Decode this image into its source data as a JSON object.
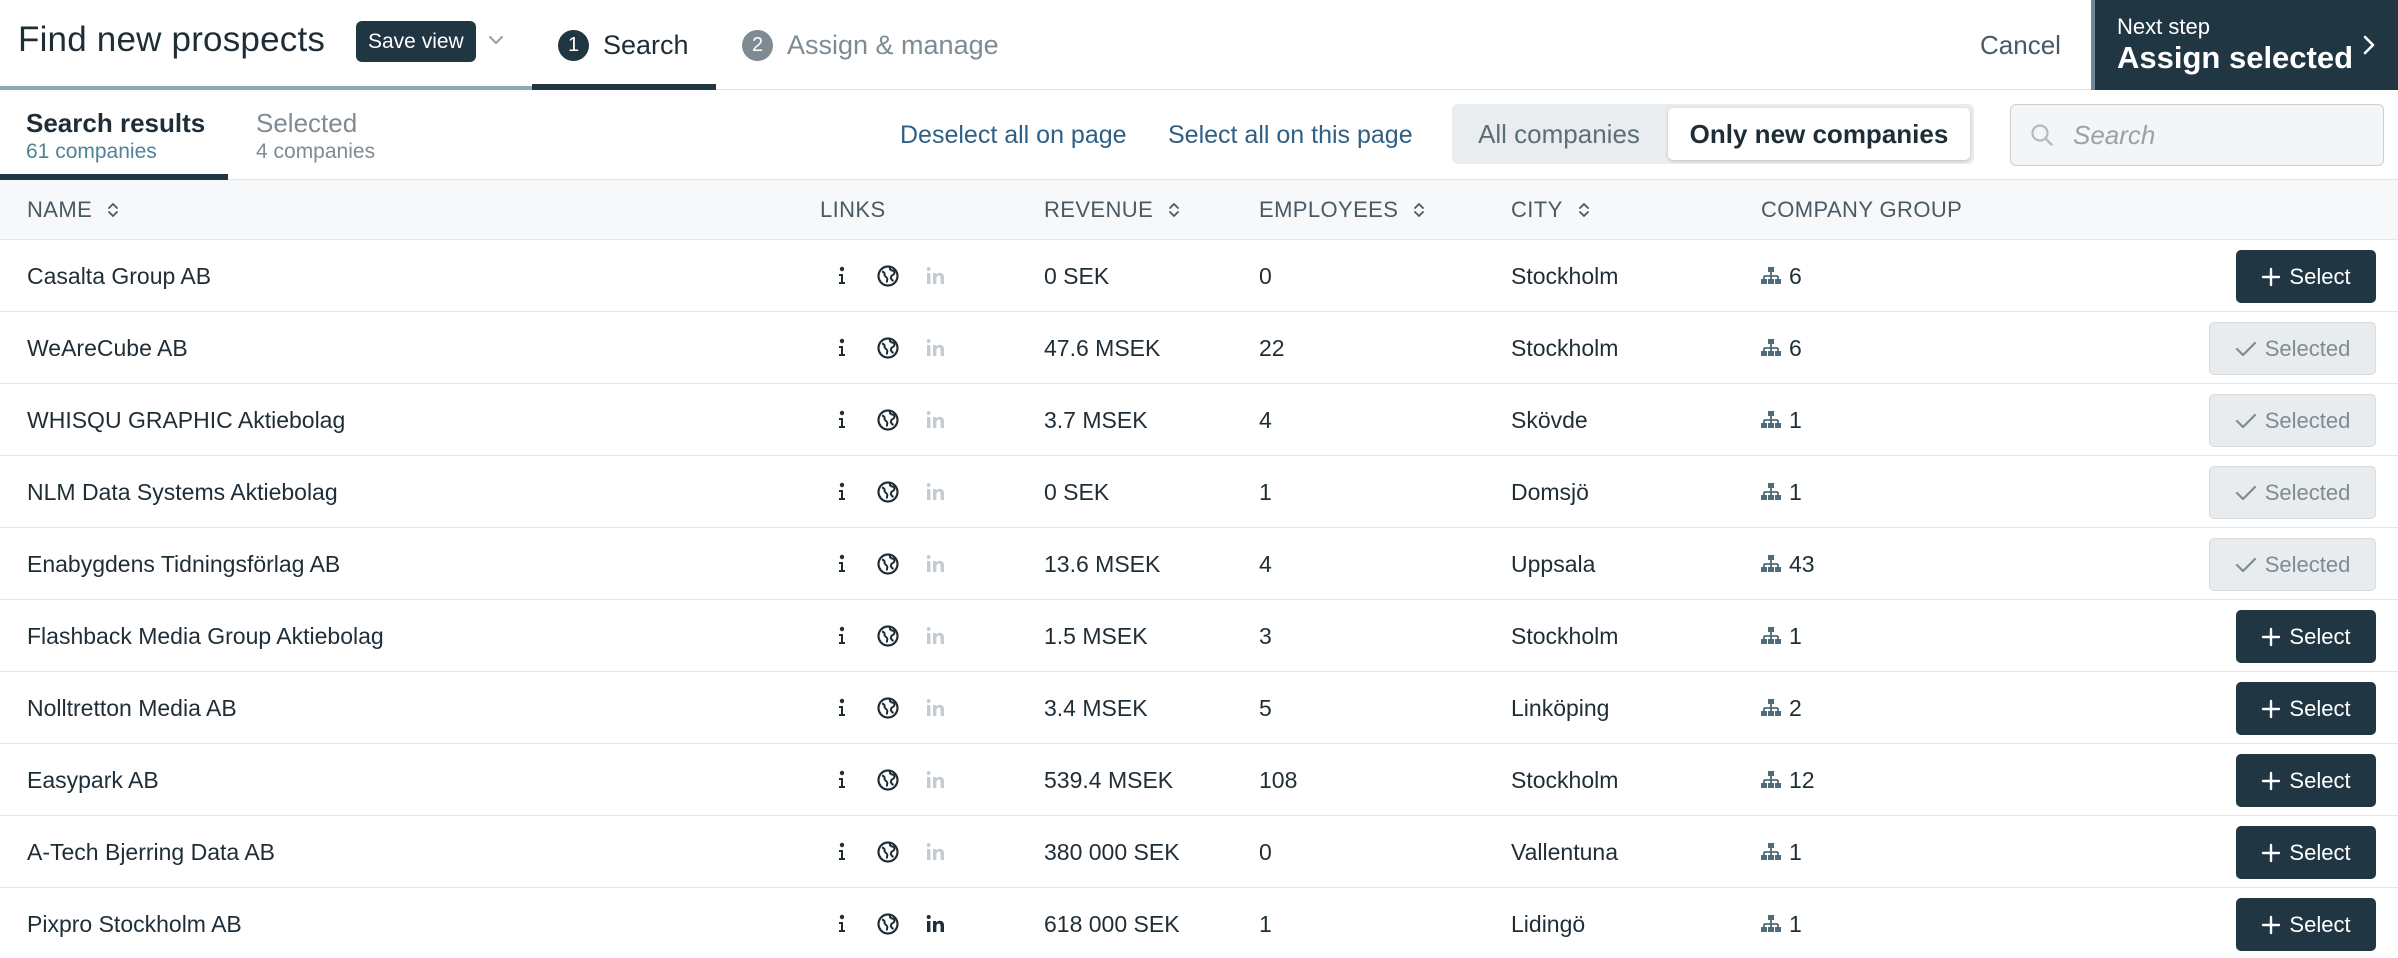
{
  "header": {
    "title": "Find new prospects",
    "save_view_label": "Save view",
    "steps": [
      {
        "num": "1",
        "label": "Search"
      },
      {
        "num": "2",
        "label": "Assign & manage"
      }
    ],
    "cancel_label": "Cancel",
    "next_step_small": "Next step",
    "next_step_big": "Assign selected"
  },
  "toolbar": {
    "tabs": [
      {
        "label": "Search results",
        "sub": "61 companies"
      },
      {
        "label": "Selected",
        "sub": "4 companies"
      }
    ],
    "deselect_all_label": "Deselect all on page",
    "select_all_label": "Select all on this page",
    "filter_all_label": "All companies",
    "filter_new_label": "Only new companies",
    "search_placeholder": "Search"
  },
  "table": {
    "columns": {
      "name": "NAME",
      "links": "LINKS",
      "revenue": "REVENUE",
      "employees": "EMPLOYEES",
      "city": "CITY",
      "group": "COMPANY GROUP"
    },
    "select_label": "Select",
    "selected_label": "Selected",
    "rows": [
      {
        "name": "Casalta Group AB",
        "revenue": "0 SEK",
        "employees": "0",
        "city": "Stockholm",
        "group": "6",
        "linkedin": false,
        "selected": false
      },
      {
        "name": "WeAreCube AB",
        "revenue": "47.6 MSEK",
        "employees": "22",
        "city": "Stockholm",
        "group": "6",
        "linkedin": false,
        "selected": true
      },
      {
        "name": "WHISQU GRAPHIC Aktiebolag",
        "revenue": "3.7 MSEK",
        "employees": "4",
        "city": "Skövde",
        "group": "1",
        "linkedin": false,
        "selected": true
      },
      {
        "name": "NLM Data Systems Aktiebolag",
        "revenue": "0 SEK",
        "employees": "1",
        "city": "Domsjö",
        "group": "1",
        "linkedin": false,
        "selected": true
      },
      {
        "name": "Enabygdens Tidningsförlag AB",
        "revenue": "13.6 MSEK",
        "employees": "4",
        "city": "Uppsala",
        "group": "43",
        "linkedin": false,
        "selected": true
      },
      {
        "name": "Flashback Media Group Aktiebolag",
        "revenue": "1.5 MSEK",
        "employees": "3",
        "city": "Stockholm",
        "group": "1",
        "linkedin": false,
        "selected": false
      },
      {
        "name": "Nolltretton Media AB",
        "revenue": "3.4 MSEK",
        "employees": "5",
        "city": "Linköping",
        "group": "2",
        "linkedin": false,
        "selected": false
      },
      {
        "name": "Easypark AB",
        "revenue": "539.4 MSEK",
        "employees": "108",
        "city": "Stockholm",
        "group": "12",
        "linkedin": false,
        "selected": false
      },
      {
        "name": "A-Tech Bjerring Data AB",
        "revenue": "380 000 SEK",
        "employees": "0",
        "city": "Vallentuna",
        "group": "1",
        "linkedin": false,
        "selected": false
      },
      {
        "name": "Pixpro Stockholm AB",
        "revenue": "618 000 SEK",
        "employees": "1",
        "city": "Lidingö",
        "group": "1",
        "linkedin": true,
        "selected": false
      }
    ]
  },
  "colors": {
    "primary": "#203642",
    "link": "#2f5f84",
    "accent_line": "#8da9b6",
    "linkedin_inactive": "#c5ccd1"
  }
}
